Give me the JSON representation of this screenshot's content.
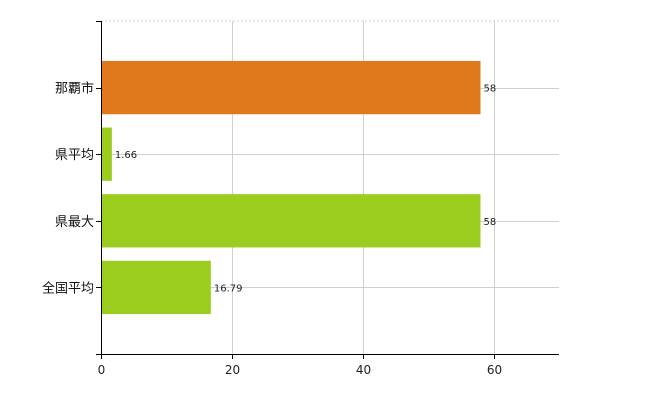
{
  "chart_data": {
    "type": "bar",
    "orientation": "horizontal",
    "categories": [
      "那覇市",
      "県平均",
      "県最大",
      "全国平均"
    ],
    "values": [
      58,
      1.66,
      58,
      16.79
    ],
    "value_labels": [
      "58",
      "1.66",
      "58",
      "16.79"
    ],
    "bar_colors": [
      "#e0781c",
      "#9acd1e",
      "#9acd1e",
      "#9acd1e"
    ],
    "xlim": [
      0,
      70
    ],
    "xticks": [
      0,
      20,
      40,
      60
    ],
    "grid": true,
    "legend": "none"
  }
}
